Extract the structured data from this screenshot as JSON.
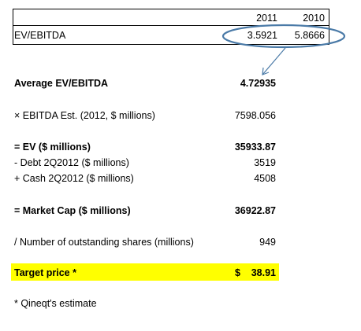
{
  "ev_table": {
    "row_label": "EV/EBITDA",
    "years": [
      "2011",
      "2010"
    ],
    "values": [
      "3.5921",
      "5.8666"
    ]
  },
  "valuation": {
    "avg_label": "Average EV/EBITDA",
    "avg_value": "4.72935",
    "ebitda_label": "× EBITDA Est. (2012, $ millions)",
    "ebitda_value": "7598.056",
    "ev_label": "= EV ($ millions)",
    "ev_value": "35933.87",
    "debt_label": "- Debt 2Q2012 ($ millions)",
    "debt_value": "3519",
    "cash_label": "+ Cash 2Q2012 ($ millions)",
    "cash_value": "4508",
    "mcap_label": "=  Market Cap ($ millions)",
    "mcap_value": "36922.87",
    "shares_label": "/ Number of outstanding shares (millions)",
    "shares_value": "949"
  },
  "target": {
    "label": "Target price *",
    "currency": "$",
    "value": "38.91",
    "highlight_color": "#ffff00"
  },
  "footnote": "* Qineqt's estimate",
  "annotation_color": "#4a7aa7"
}
